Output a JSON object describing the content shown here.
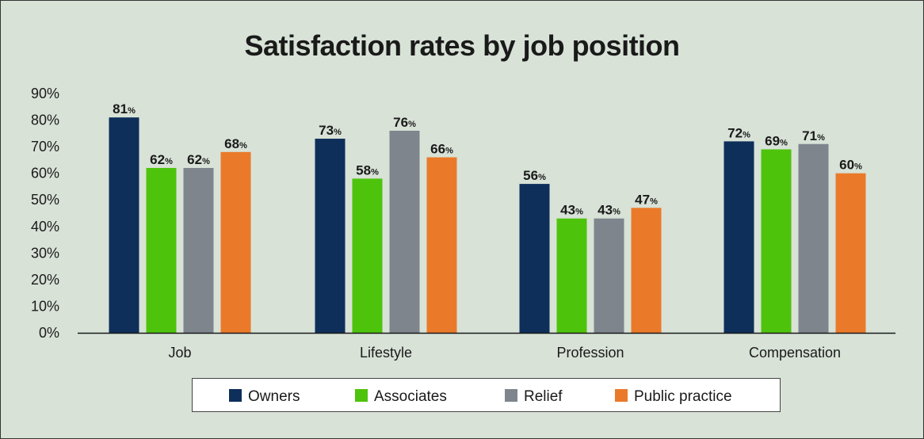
{
  "chart_data": {
    "type": "bar",
    "title": "Satisfaction rates by job position",
    "xlabel": "",
    "ylabel": "",
    "ylim": [
      0,
      90
    ],
    "y_ticks": [
      "0%",
      "10%",
      "20%",
      "30%",
      "40%",
      "50%",
      "60%",
      "70%",
      "80%",
      "90%"
    ],
    "y_tick_values": [
      0,
      10,
      20,
      30,
      40,
      50,
      60,
      70,
      80,
      90
    ],
    "categories": [
      "Job",
      "Lifestyle",
      "Profession",
      "Compensation"
    ],
    "series": [
      {
        "name": "Owners",
        "color": "#0e2f5a",
        "values": [
          81,
          73,
          56,
          72
        ]
      },
      {
        "name": "Associates",
        "color": "#4ec30c",
        "values": [
          62,
          58,
          43,
          69
        ]
      },
      {
        "name": "Relief",
        "color": "#7e858d",
        "values": [
          62,
          76,
          43,
          71
        ]
      },
      {
        "name": "Public practice",
        "color": "#ea7a2a",
        "values": [
          68,
          66,
          47,
          60
        ]
      }
    ],
    "value_suffix": "%",
    "legend_position": "bottom",
    "grid": false
  }
}
